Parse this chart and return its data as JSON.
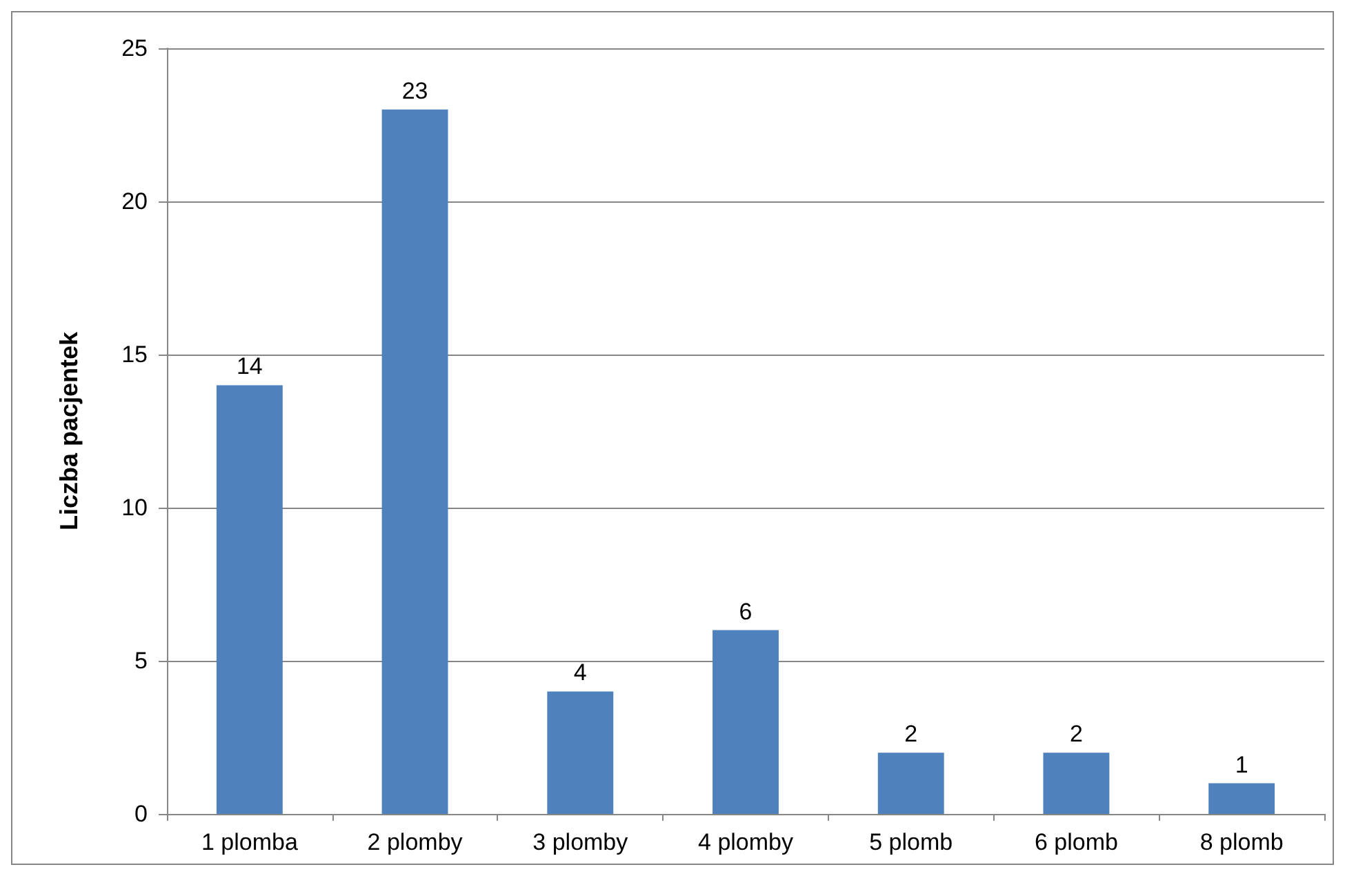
{
  "chart_data": {
    "type": "bar",
    "ylabel": "Liczba pacjentek",
    "categories": [
      "1 plomba",
      "2 plomby",
      "3 plomby",
      "4 plomby",
      "5 plomb",
      "6 plomb",
      "8 plomb"
    ],
    "values": [
      14,
      23,
      4,
      6,
      2,
      2,
      1
    ],
    "color": "#4f81bd",
    "ylim": [
      0,
      25
    ],
    "yticks": [
      0,
      5,
      10,
      15,
      20,
      25
    ],
    "grid": "y",
    "data_labels": true
  }
}
